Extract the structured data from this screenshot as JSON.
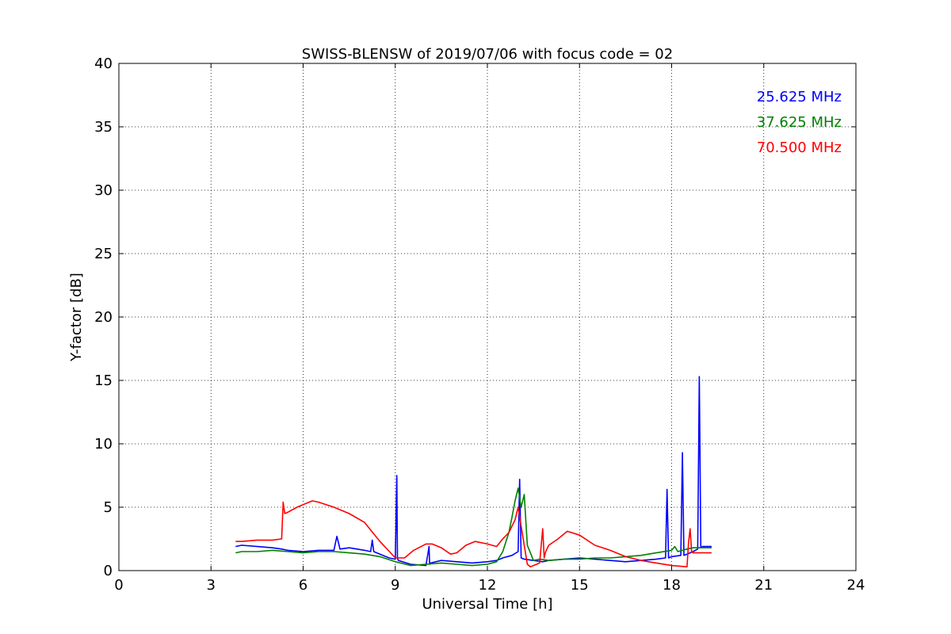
{
  "chart_data": {
    "type": "line",
    "title": "SWISS-BLENSW of 2019/07/06 with focus code = 02",
    "xlabel": "Universal Time [h]",
    "ylabel": "Y-factor [dB]",
    "xlim": [
      0,
      24
    ],
    "ylim": [
      0,
      40
    ],
    "xticks": [
      0,
      3,
      6,
      9,
      12,
      15,
      18,
      21,
      24
    ],
    "xtick_labels": [
      "0",
      "3",
      "6",
      "9",
      "12",
      "15",
      "18",
      "21",
      "24"
    ],
    "yticks": [
      0,
      5,
      10,
      15,
      20,
      25,
      30,
      35,
      40
    ],
    "ytick_labels": [
      "0",
      "5",
      "10",
      "15",
      "20",
      "25",
      "30",
      "35",
      "40"
    ],
    "grid": true,
    "legend_position": "top-right",
    "series": [
      {
        "name": "25.625 MHz",
        "color": "#0000ff",
        "x": [
          3.8,
          4.0,
          4.5,
          5.0,
          5.3,
          5.5,
          6.0,
          6.5,
          7.0,
          7.1,
          7.15,
          7.2,
          7.5,
          8.0,
          8.2,
          8.25,
          8.3,
          8.5,
          8.8,
          9.0,
          9.05,
          9.07,
          9.1,
          9.5,
          10.0,
          10.1,
          10.12,
          10.15,
          10.5,
          11.0,
          11.5,
          12.0,
          12.3,
          12.5,
          12.8,
          13.0,
          13.05,
          13.1,
          13.2,
          13.5,
          13.8,
          14.0,
          14.5,
          15.0,
          15.5,
          16.0,
          16.5,
          17.0,
          17.5,
          17.8,
          17.85,
          17.9,
          18.0,
          18.3,
          18.35,
          18.4,
          18.5,
          18.7,
          18.85,
          18.9,
          18.95,
          19.0,
          19.3
        ],
        "y": [
          1.9,
          2.0,
          1.9,
          1.8,
          1.7,
          1.6,
          1.5,
          1.6,
          1.6,
          2.7,
          2.2,
          1.7,
          1.8,
          1.6,
          1.5,
          2.4,
          1.5,
          1.3,
          1.0,
          0.9,
          7.5,
          1.0,
          0.8,
          0.5,
          0.4,
          1.9,
          0.5,
          0.6,
          0.8,
          0.7,
          0.6,
          0.7,
          0.8,
          1.0,
          1.2,
          1.5,
          7.2,
          1.0,
          0.9,
          0.8,
          0.7,
          0.8,
          0.9,
          1.0,
          0.9,
          0.8,
          0.7,
          0.8,
          0.9,
          1.0,
          6.4,
          1.0,
          1.1,
          1.2,
          9.3,
          1.2,
          1.3,
          1.5,
          1.7,
          15.3,
          1.8,
          1.9,
          1.9
        ]
      },
      {
        "name": "37.625 MHz",
        "color": "#008000",
        "x": [
          3.8,
          4.0,
          4.5,
          5.0,
          5.5,
          6.0,
          6.5,
          7.0,
          7.5,
          8.0,
          8.5,
          9.0,
          9.5,
          10.0,
          10.5,
          11.0,
          11.5,
          12.0,
          12.3,
          12.5,
          12.7,
          12.8,
          12.9,
          13.0,
          13.1,
          13.2,
          13.3,
          13.5,
          13.7,
          14.0,
          14.5,
          15.0,
          15.5,
          16.0,
          16.5,
          17.0,
          17.5,
          18.0,
          18.1,
          18.2,
          18.5,
          18.7,
          19.0,
          19.3
        ],
        "y": [
          1.4,
          1.5,
          1.5,
          1.6,
          1.5,
          1.4,
          1.5,
          1.5,
          1.4,
          1.3,
          1.1,
          0.7,
          0.4,
          0.5,
          0.6,
          0.5,
          0.4,
          0.5,
          0.7,
          1.5,
          3.0,
          4.2,
          5.5,
          6.5,
          5.0,
          6.0,
          2.0,
          0.8,
          0.9,
          0.8,
          0.9,
          0.9,
          1.0,
          1.0,
          1.1,
          1.2,
          1.4,
          1.6,
          1.9,
          1.5,
          1.7,
          1.8,
          1.8,
          1.8
        ]
      },
      {
        "name": "70.500 MHz",
        "color": "#ff0000",
        "x": [
          3.8,
          4.0,
          4.5,
          5.0,
          5.3,
          5.35,
          5.4,
          5.5,
          5.8,
          6.0,
          6.3,
          6.5,
          7.0,
          7.5,
          8.0,
          8.5,
          9.0,
          9.3,
          9.6,
          10.0,
          10.2,
          10.5,
          10.8,
          11.0,
          11.3,
          11.6,
          12.0,
          12.3,
          12.5,
          12.7,
          12.9,
          13.0,
          13.1,
          13.2,
          13.3,
          13.4,
          13.5,
          13.7,
          13.8,
          13.85,
          13.9,
          14.0,
          14.3,
          14.6,
          15.0,
          15.5,
          16.0,
          16.5,
          17.0,
          17.5,
          18.0,
          18.5,
          18.55,
          18.6,
          18.65,
          18.7,
          19.0,
          19.3
        ],
        "y": [
          2.3,
          2.3,
          2.4,
          2.4,
          2.5,
          5.4,
          4.5,
          4.6,
          5.0,
          5.2,
          5.5,
          5.4,
          5.0,
          4.5,
          3.8,
          2.3,
          1.0,
          1.0,
          1.6,
          2.1,
          2.1,
          1.8,
          1.3,
          1.4,
          2.0,
          2.3,
          2.1,
          1.9,
          2.5,
          3.0,
          4.0,
          5.0,
          3.5,
          2.0,
          0.5,
          0.3,
          0.4,
          0.6,
          3.3,
          1.0,
          1.5,
          2.0,
          2.5,
          3.1,
          2.8,
          2.0,
          1.6,
          1.1,
          0.8,
          0.6,
          0.4,
          0.3,
          2.2,
          3.3,
          1.5,
          1.4,
          1.4,
          1.4
        ]
      }
    ]
  }
}
